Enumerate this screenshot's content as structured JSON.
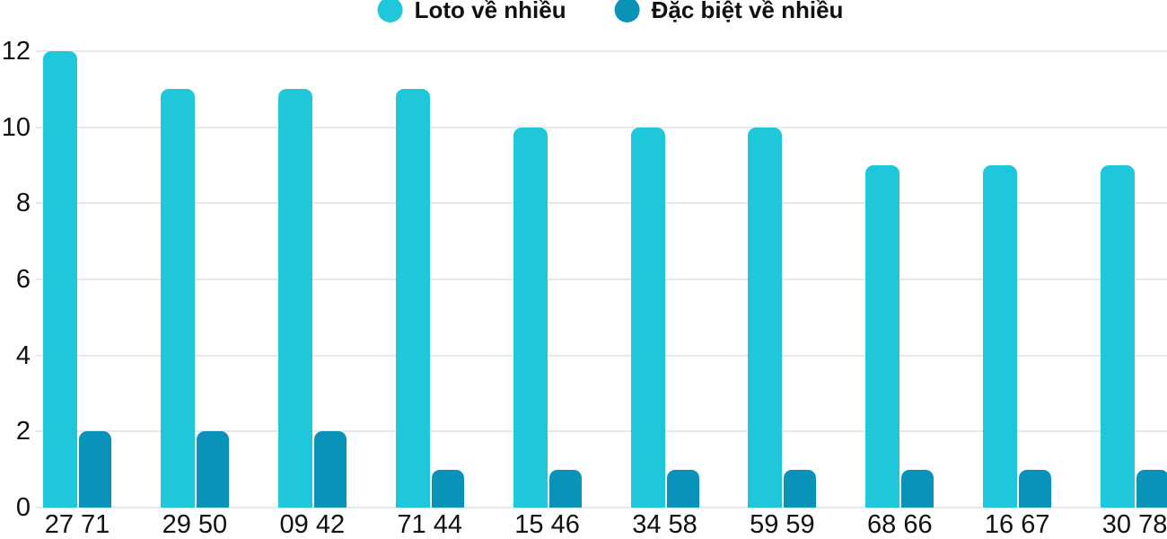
{
  "chart_data": {
    "type": "bar",
    "title": "",
    "xlabel": "",
    "ylabel": "",
    "categories": [
      "27 71",
      "29 50",
      "09 42",
      "71 44",
      "15 46",
      "34 58",
      "59 59",
      "68 66",
      "16 67",
      "30 78"
    ],
    "series": [
      {
        "name": "Loto về nhiều",
        "color": "#1EC7D9",
        "values": [
          12,
          11,
          11,
          11,
          10,
          10,
          10,
          9,
          9,
          9
        ]
      },
      {
        "name": "Đặc biệt về nhiều",
        "color": "#0A93B8",
        "values": [
          2,
          2,
          2,
          1,
          1,
          1,
          1,
          1,
          1,
          1
        ]
      }
    ],
    "ylim": [
      0,
      12
    ],
    "yticks": [
      0,
      2,
      4,
      6,
      8,
      10,
      12
    ],
    "grid": true,
    "grid_color": "#e8e8e8",
    "legend_position": "top-center",
    "text_color": "#111111"
  }
}
